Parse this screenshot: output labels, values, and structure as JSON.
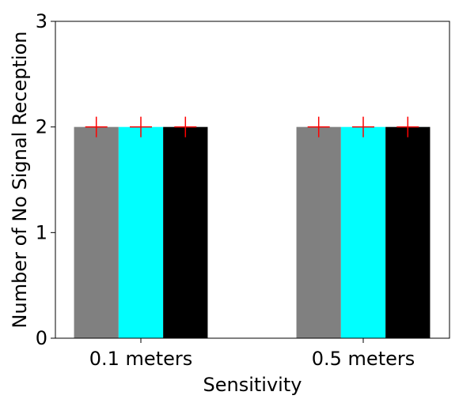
{
  "chart_data": {
    "type": "bar",
    "title": "",
    "xlabel": "Sensitivity",
    "ylabel": "Number of No Signal Reception",
    "categories": [
      "0.1 meters",
      "0.5 meters"
    ],
    "series": [
      {
        "values": [
          2,
          2
        ],
        "color": "#808080",
        "error": [
          0,
          0
        ]
      },
      {
        "values": [
          2,
          2
        ],
        "color": "#00ffff",
        "error": [
          0,
          0
        ]
      },
      {
        "values": [
          2,
          2
        ],
        "color": "#000000",
        "error": [
          0,
          0
        ]
      }
    ],
    "marker": {
      "symbol": "plus",
      "color": "#ff0000"
    },
    "ylim": [
      0,
      3
    ],
    "yticks": [
      0,
      1,
      2,
      3
    ],
    "grid": false,
    "legend": "none"
  }
}
